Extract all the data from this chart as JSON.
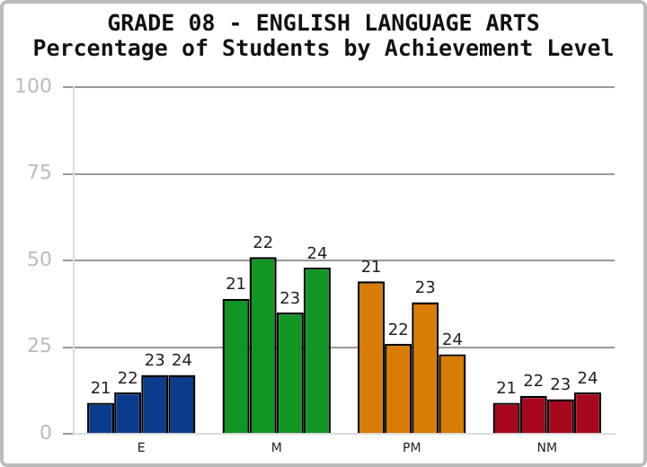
{
  "chart_data": {
    "type": "bar",
    "title": "GRADE 08 - ENGLISH LANGUAGE ARTS",
    "subtitle": "Percentage of Students by Achievement Level",
    "categories": [
      "E",
      "M",
      "PM",
      "NM"
    ],
    "series": [
      {
        "name": "21",
        "colors": [
          "#0b3d8c",
          "#119624",
          "#d97c06",
          "#a8071f"
        ],
        "values": [
          9,
          39,
          44,
          9
        ]
      },
      {
        "name": "22",
        "colors": [
          "#0b3d8c",
          "#119624",
          "#d97c06",
          "#a8071f"
        ],
        "values": [
          12,
          51,
          26,
          11
        ]
      },
      {
        "name": "23",
        "colors": [
          "#0b3d8c",
          "#119624",
          "#d97c06",
          "#a8071f"
        ],
        "values": [
          17,
          35,
          38,
          10
        ]
      },
      {
        "name": "24",
        "colors": [
          "#0b3d8c",
          "#119624",
          "#d97c06",
          "#a8071f"
        ],
        "values": [
          17,
          48,
          23,
          12
        ]
      }
    ],
    "ylim": [
      0,
      100
    ],
    "yticks": [
      0,
      25,
      50,
      75,
      100
    ],
    "grid": "y",
    "legend": false
  }
}
